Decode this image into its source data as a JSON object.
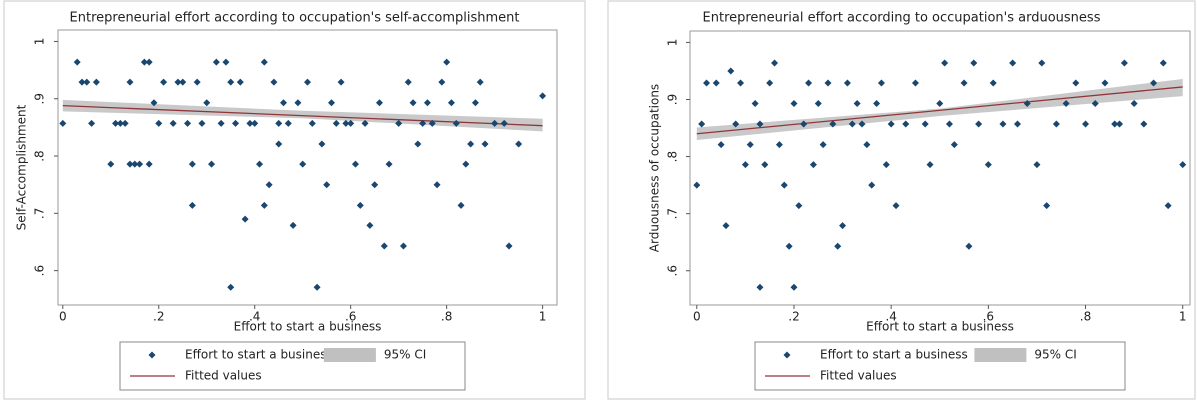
{
  "chart_data": [
    {
      "type": "scatter",
      "title": "Entrepreneurial effort according to occupation's self-accomplishment",
      "x_label": "Effort to start a business",
      "y_label": "Self-Accomplishment",
      "xlim": [
        -0.01,
        1.03
      ],
      "ylim": [
        0.54,
        1.02
      ],
      "xticks": [
        0,
        {
          "value": 0.2,
          "label": ".2"
        },
        {
          "value": 0.4,
          "label": ".4"
        },
        {
          "value": 0.6,
          "label": ".6"
        },
        {
          "value": 0.8,
          "label": ".8"
        },
        1
      ],
      "yticks": [
        {
          "value": 0.6,
          "label": ".6"
        },
        {
          "value": 0.7,
          "label": ".7"
        },
        {
          "value": 0.8,
          "label": ".8"
        },
        {
          "value": 0.9,
          "label": ".9"
        },
        1
      ],
      "legend": "below",
      "series": [
        {
          "name": "Effort to start a business",
          "type": "scatter",
          "color": "#1a476f",
          "x": [
            0,
            0.03,
            0.04,
            0.05,
            0.06,
            0.07,
            0.1,
            0.11,
            0.12,
            0.13,
            0.14,
            0.14,
            0.15,
            0.16,
            0.17,
            0.18,
            0.18,
            0.19,
            0.2,
            0.21,
            0.23,
            0.24,
            0.25,
            0.26,
            0.27,
            0.27,
            0.28,
            0.29,
            0.3,
            0.31,
            0.32,
            0.33,
            0.34,
            0.35,
            0.35,
            0.36,
            0.37,
            0.38,
            0.39,
            0.4,
            0.41,
            0.42,
            0.42,
            0.43,
            0.44,
            0.45,
            0.45,
            0.46,
            0.47,
            0.48,
            0.49,
            0.5,
            0.51,
            0.52,
            0.53,
            0.54,
            0.55,
            0.56,
            0.57,
            0.58,
            0.59,
            0.6,
            0.61,
            0.62,
            0.63,
            0.64,
            0.65,
            0.66,
            0.67,
            0.68,
            0.7,
            0.71,
            0.72,
            0.73,
            0.74,
            0.75,
            0.76,
            0.77,
            0.78,
            0.79,
            0.8,
            0.81,
            0.82,
            0.83,
            0.84,
            0.85,
            0.86,
            0.87,
            0.88,
            0.9,
            0.92,
            0.93,
            0.95,
            1
          ],
          "values": [
            0.857,
            0.964,
            0.929,
            0.929,
            0.857,
            0.929,
            0.786,
            0.857,
            0.857,
            0.857,
            0.786,
            0.929,
            0.786,
            0.786,
            0.964,
            0.964,
            0.786,
            0.893,
            0.857,
            0.929,
            0.857,
            0.929,
            0.929,
            0.857,
            0.714,
            0.786,
            0.929,
            0.857,
            0.893,
            0.786,
            0.964,
            0.857,
            0.964,
            0.571,
            0.929,
            0.857,
            0.929,
            0.69,
            0.857,
            0.857,
            0.786,
            0.964,
            0.714,
            0.75,
            0.929,
            0.857,
            0.821,
            0.893,
            0.857,
            0.679,
            0.893,
            0.786,
            0.929,
            0.857,
            0.571,
            0.821,
            0.75,
            0.893,
            0.857,
            0.929,
            0.857,
            0.857,
            0.786,
            0.714,
            0.857,
            0.679,
            0.75,
            0.893,
            0.643,
            0.786,
            0.857,
            0.643,
            0.929,
            0.893,
            0.821,
            0.857,
            0.893,
            0.857,
            0.75,
            0.929,
            0.964,
            0.893,
            0.857,
            0.714,
            0.786,
            0.821,
            0.893,
            0.929,
            0.821,
            0.857,
            0.857,
            0.643,
            0.821,
            0.905
          ]
        },
        {
          "name": "95% CI",
          "type": "ci-band",
          "color": "#c0c0c0",
          "x": [
            0,
            0.5,
            1
          ],
          "lower": [
            0.878,
            0.866,
            0.843
          ],
          "upper": [
            0.898,
            0.879,
            0.865
          ]
        },
        {
          "name": "Fitted values",
          "type": "line",
          "color": "#90353b",
          "x": [
            0,
            1
          ],
          "values": [
            0.888,
            0.853
          ]
        }
      ]
    },
    {
      "type": "scatter",
      "title": "Entrepreneurial effort according to occupation's arduousness",
      "x_label": "Effort to start a business",
      "y_label": "Arduousness of occupations",
      "xlim": [
        -0.014,
        1.015
      ],
      "ylim": [
        0.54,
        1.02
      ],
      "xticks": [
        0,
        {
          "value": 0.2,
          "label": ".2"
        },
        {
          "value": 0.4,
          "label": ".4"
        },
        {
          "value": 0.6,
          "label": ".6"
        },
        {
          "value": 0.8,
          "label": ".8"
        },
        1
      ],
      "yticks": [
        {
          "value": 0.6,
          "label": ".6"
        },
        {
          "value": 0.7,
          "label": ".7"
        },
        {
          "value": 0.8,
          "label": ".8"
        },
        {
          "value": 0.9,
          "label": ".9"
        },
        1
      ],
      "legend": "below",
      "series": [
        {
          "name": "Effort to start a business",
          "type": "scatter",
          "color": "#1a476f",
          "x": [
            0,
            0.01,
            0.02,
            0.04,
            0.05,
            0.06,
            0.07,
            0.08,
            0.09,
            0.1,
            0.11,
            0.12,
            0.13,
            0.13,
            0.14,
            0.15,
            0.16,
            0.17,
            0.18,
            0.19,
            0.2,
            0.2,
            0.21,
            0.22,
            0.23,
            0.24,
            0.25,
            0.26,
            0.27,
            0.28,
            0.29,
            0.3,
            0.31,
            0.32,
            0.33,
            0.34,
            0.35,
            0.36,
            0.37,
            0.38,
            0.39,
            0.4,
            0.41,
            0.43,
            0.45,
            0.47,
            0.48,
            0.5,
            0.51,
            0.52,
            0.53,
            0.55,
            0.56,
            0.57,
            0.58,
            0.6,
            0.61,
            0.63,
            0.65,
            0.66,
            0.68,
            0.7,
            0.71,
            0.72,
            0.74,
            0.76,
            0.78,
            0.8,
            0.82,
            0.84,
            0.86,
            0.87,
            0.88,
            0.9,
            0.92,
            0.94,
            0.96,
            0.97,
            1
          ],
          "values": [
            0.75,
            0.857,
            0.929,
            0.929,
            0.821,
            0.679,
            0.95,
            0.857,
            0.929,
            0.786,
            0.821,
            0.893,
            0.571,
            0.857,
            0.786,
            0.929,
            0.964,
            0.821,
            0.75,
            0.643,
            0.893,
            0.571,
            0.714,
            0.857,
            0.929,
            0.786,
            0.893,
            0.821,
            0.929,
            0.857,
            0.643,
            0.679,
            0.929,
            0.857,
            0.893,
            0.857,
            0.821,
            0.75,
            0.893,
            0.929,
            0.786,
            0.857,
            0.714,
            0.857,
            0.929,
            0.857,
            0.786,
            0.893,
            0.964,
            0.857,
            0.821,
            0.929,
            0.643,
            0.964,
            0.857,
            0.786,
            0.929,
            0.857,
            0.964,
            0.857,
            0.893,
            0.786,
            0.964,
            0.714,
            0.857,
            0.893,
            0.929,
            0.857,
            0.893,
            0.929,
            0.857,
            0.857,
            0.964,
            0.893,
            0.857,
            0.929,
            0.964,
            0.714,
            0.786
          ]
        },
        {
          "name": "95% CI",
          "type": "ci-band",
          "color": "#c0c0c0",
          "x": [
            0,
            0.5,
            1
          ],
          "lower": [
            0.829,
            0.871,
            0.906
          ],
          "upper": [
            0.851,
            0.884,
            0.936
          ]
        },
        {
          "name": "Fitted values",
          "type": "line",
          "color": "#90353b",
          "x": [
            0,
            1
          ],
          "values": [
            0.84,
            0.922
          ]
        }
      ]
    }
  ]
}
